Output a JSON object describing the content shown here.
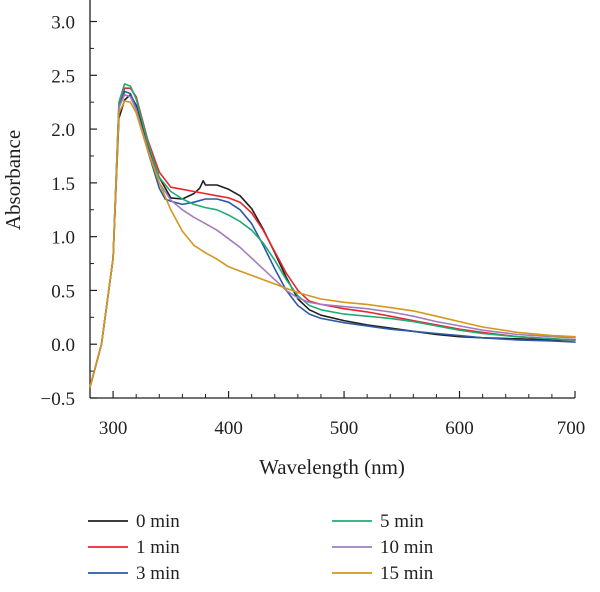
{
  "chart_data": {
    "type": "line",
    "xlabel": "Wavelength (nm)",
    "ylabel": "Absorbance",
    "xlim": [
      280,
      700
    ],
    "ylim": [
      -0.5,
      3.2
    ],
    "xticks": [
      "300",
      "400",
      "500",
      "600",
      "700"
    ],
    "xtick_values": [
      300,
      400,
      500,
      600,
      700
    ],
    "yticks": [
      "−0.5",
      "0.0",
      "0.5",
      "1.0",
      "1.5",
      "2.0",
      "2.5",
      "3.0"
    ],
    "ytick_values": [
      -0.5,
      0,
      0.5,
      1.0,
      1.5,
      2.0,
      2.5,
      3.0
    ],
    "grid": false,
    "legend_position": "bottom",
    "series": [
      {
        "name": "0 min",
        "color": "#231f20",
        "x": [
          280,
          290,
          300,
          305,
          310,
          315,
          320,
          330,
          340,
          350,
          360,
          370,
          375,
          378,
          380,
          385,
          390,
          400,
          410,
          420,
          430,
          440,
          450,
          460,
          470,
          480,
          500,
          520,
          540,
          560,
          580,
          600,
          620,
          650,
          680,
          700
        ],
        "y": [
          -0.4,
          0.0,
          0.8,
          2.1,
          2.27,
          2.32,
          2.22,
          1.85,
          1.55,
          1.36,
          1.35,
          1.4,
          1.45,
          1.52,
          1.48,
          1.48,
          1.48,
          1.44,
          1.38,
          1.26,
          1.07,
          0.85,
          0.62,
          0.42,
          0.32,
          0.27,
          0.22,
          0.18,
          0.15,
          0.12,
          0.09,
          0.07,
          0.06,
          0.05,
          0.04,
          0.04
        ]
      },
      {
        "name": "1 min",
        "color": "#e8262d",
        "x": [
          280,
          290,
          300,
          305,
          310,
          315,
          320,
          330,
          340,
          350,
          360,
          370,
          380,
          390,
          400,
          410,
          420,
          430,
          440,
          450,
          460,
          470,
          480,
          500,
          520,
          540,
          560,
          580,
          600,
          620,
          650,
          680,
          700
        ],
        "y": [
          -0.4,
          0.0,
          0.8,
          2.2,
          2.38,
          2.38,
          2.3,
          1.9,
          1.6,
          1.46,
          1.44,
          1.42,
          1.4,
          1.38,
          1.36,
          1.32,
          1.22,
          1.06,
          0.86,
          0.66,
          0.5,
          0.4,
          0.37,
          0.33,
          0.3,
          0.26,
          0.22,
          0.18,
          0.14,
          0.11,
          0.07,
          0.05,
          0.04
        ]
      },
      {
        "name": "3 min",
        "color": "#2a5aa8",
        "x": [
          280,
          290,
          300,
          305,
          310,
          315,
          320,
          330,
          340,
          345,
          350,
          360,
          370,
          380,
          390,
          400,
          410,
          420,
          430,
          440,
          450,
          460,
          470,
          480,
          500,
          520,
          540,
          560,
          580,
          600,
          620,
          650,
          680,
          700
        ],
        "y": [
          -0.4,
          0.0,
          0.8,
          2.2,
          2.35,
          2.33,
          2.2,
          1.8,
          1.45,
          1.35,
          1.33,
          1.3,
          1.32,
          1.35,
          1.35,
          1.32,
          1.25,
          1.12,
          0.92,
          0.7,
          0.5,
          0.36,
          0.28,
          0.24,
          0.2,
          0.17,
          0.14,
          0.12,
          0.1,
          0.08,
          0.06,
          0.04,
          0.03,
          0.02
        ]
      },
      {
        "name": "5 min",
        "color": "#1fab74",
        "x": [
          280,
          290,
          300,
          305,
          310,
          315,
          320,
          330,
          340,
          350,
          360,
          370,
          380,
          390,
          400,
          410,
          420,
          430,
          440,
          450,
          460,
          470,
          480,
          500,
          520,
          540,
          560,
          580,
          600,
          620,
          650,
          680,
          700
        ],
        "y": [
          -0.4,
          0.0,
          0.8,
          2.25,
          2.42,
          2.4,
          2.28,
          1.88,
          1.55,
          1.42,
          1.35,
          1.3,
          1.27,
          1.25,
          1.2,
          1.14,
          1.06,
          0.94,
          0.78,
          0.6,
          0.45,
          0.36,
          0.32,
          0.28,
          0.26,
          0.24,
          0.21,
          0.17,
          0.13,
          0.1,
          0.07,
          0.05,
          0.04
        ]
      },
      {
        "name": "10 min",
        "color": "#a47bbd",
        "x": [
          280,
          290,
          300,
          305,
          310,
          315,
          320,
          330,
          340,
          350,
          360,
          370,
          380,
          390,
          400,
          410,
          420,
          430,
          440,
          450,
          460,
          470,
          480,
          500,
          520,
          540,
          560,
          580,
          600,
          620,
          650,
          680,
          700
        ],
        "y": [
          -0.4,
          0.0,
          0.8,
          2.2,
          2.32,
          2.3,
          2.18,
          1.82,
          1.5,
          1.34,
          1.25,
          1.18,
          1.12,
          1.06,
          0.98,
          0.9,
          0.8,
          0.7,
          0.6,
          0.5,
          0.43,
          0.39,
          0.37,
          0.35,
          0.33,
          0.3,
          0.26,
          0.21,
          0.17,
          0.13,
          0.09,
          0.07,
          0.06
        ]
      },
      {
        "name": "15 min",
        "color": "#d4961c",
        "x": [
          280,
          290,
          300,
          305,
          310,
          315,
          320,
          330,
          340,
          350,
          360,
          370,
          380,
          390,
          400,
          410,
          420,
          440,
          460,
          480,
          500,
          520,
          540,
          560,
          580,
          600,
          620,
          650,
          680,
          700
        ],
        "y": [
          -0.4,
          0.0,
          0.8,
          2.15,
          2.26,
          2.25,
          2.15,
          1.8,
          1.5,
          1.25,
          1.05,
          0.92,
          0.85,
          0.79,
          0.72,
          0.68,
          0.64,
          0.56,
          0.48,
          0.42,
          0.39,
          0.37,
          0.34,
          0.31,
          0.26,
          0.21,
          0.16,
          0.11,
          0.08,
          0.07
        ]
      }
    ]
  }
}
